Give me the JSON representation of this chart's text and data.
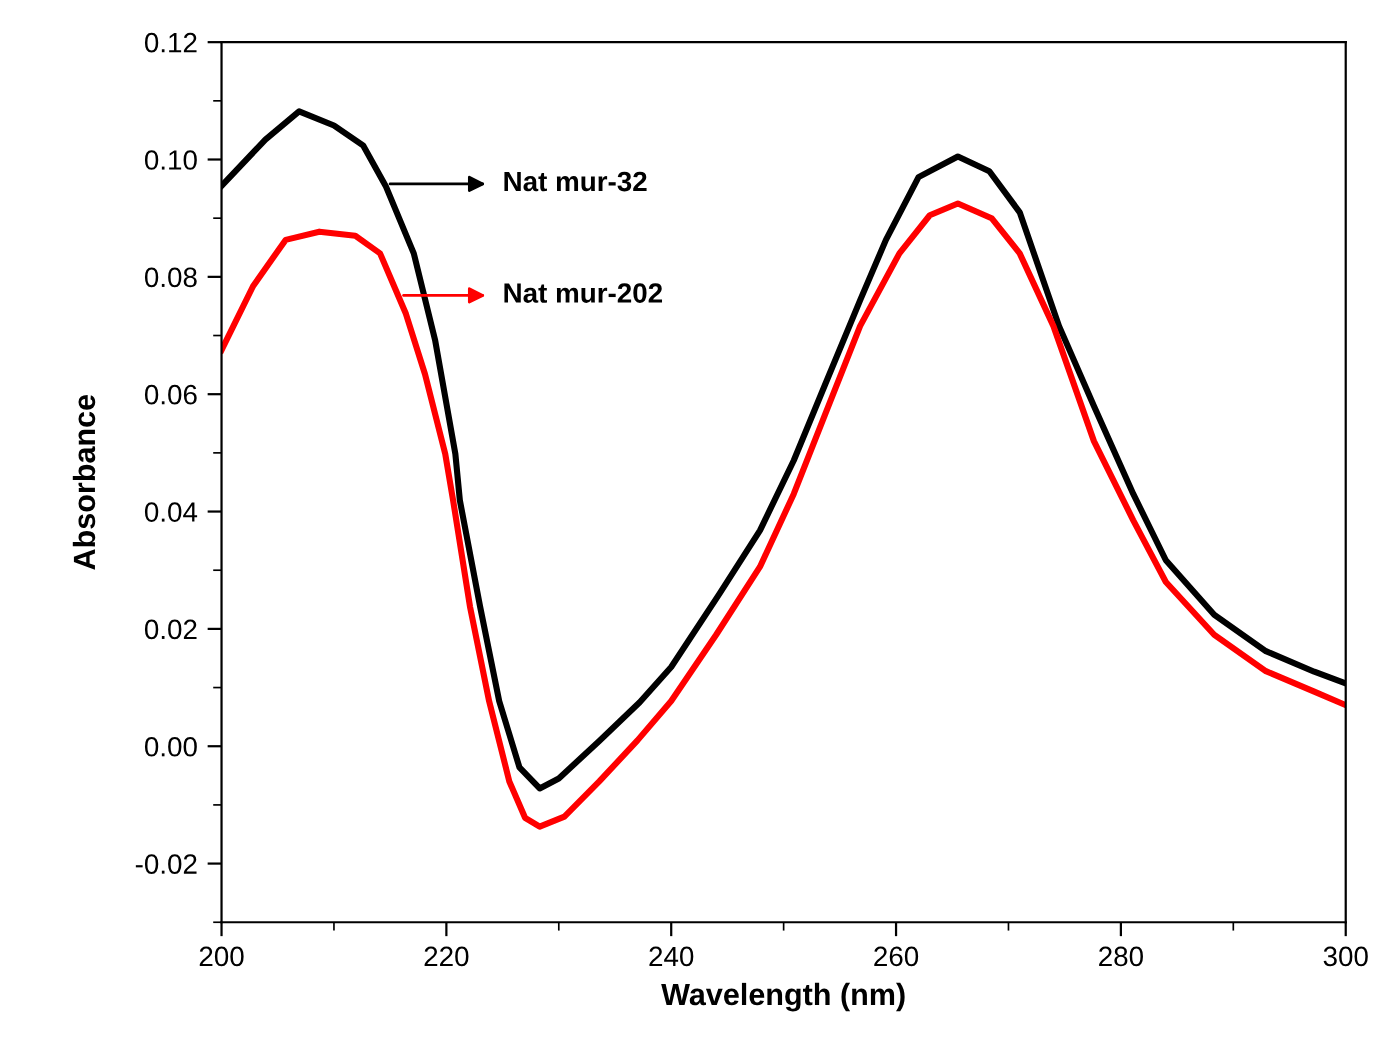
{
  "chart_data": {
    "type": "line",
    "xlabel": "Wavelength (nm)",
    "ylabel": "Absorbance",
    "xlim": [
      200,
      300
    ],
    "xticks": [
      200,
      220,
      240,
      260,
      280,
      300
    ],
    "ylim": [
      -0.03,
      0.12
    ],
    "yticks": [
      {
        "value": -0.02,
        "label": "-0.02"
      },
      {
        "value": 0,
        "label": "0.00"
      },
      {
        "value": 0.02,
        "label": "0.02"
      },
      {
        "value": 0.04,
        "label": "0.04"
      },
      {
        "value": 0.06,
        "label": "0.06"
      },
      {
        "value": 0.08,
        "label": "0.08"
      },
      {
        "value": 0.1,
        "label": "0.10"
      },
      {
        "value": 0.12,
        "label": "0.12"
      }
    ],
    "grid": false,
    "legend": "top left",
    "marker": "none",
    "line_style": "solid",
    "series": [
      {
        "name": "Nat mur-32",
        "color": "#000000",
        "x": [
          200,
          203.9,
          206.9,
          210,
          212.6,
          214.6,
          217.1,
          219,
          220.8,
          221.2,
          223,
          224.7,
          226.5,
          228.3,
          230,
          233.6,
          237.2,
          240,
          244.3,
          247.9,
          250.9,
          253.7,
          256.8,
          259.1,
          262,
          265.5,
          268.3,
          271,
          274.5,
          277.6,
          281.1,
          284,
          288.3,
          292.9,
          297.2,
          300
        ],
        "values": [
          0.0955,
          0.1034,
          0.1082,
          0.1058,
          0.1024,
          0.0955,
          0.084,
          0.0692,
          0.0498,
          0.0419,
          0.0238,
          0.0077,
          -0.0036,
          -0.0072,
          -0.0055,
          0.0009,
          0.0075,
          0.0135,
          0.026,
          0.0368,
          0.0487,
          0.0617,
          0.076,
          0.0863,
          0.097,
          0.1005,
          0.098,
          0.091,
          0.0716,
          0.058,
          0.043,
          0.0317,
          0.0224,
          0.0162,
          0.0127,
          0.0107
        ]
      },
      {
        "name": "Nat mur-202",
        "color": "#ff0000",
        "x": [
          200,
          202.8,
          205.7,
          208.7,
          211.9,
          214.1,
          216.4,
          218.1,
          219.9,
          220.6,
          222.1,
          223.8,
          225.6,
          227,
          228.3,
          230.5,
          233.6,
          237,
          240,
          244,
          247.9,
          250.9,
          253.7,
          256.8,
          260.3,
          263,
          265.5,
          268.5,
          271,
          274,
          277.6,
          281.1,
          284,
          288.3,
          292.9,
          297.2,
          300
        ],
        "values": [
          0.0675,
          0.0784,
          0.0863,
          0.0877,
          0.087,
          0.084,
          0.0737,
          0.0634,
          0.0498,
          0.0419,
          0.0238,
          0.0077,
          -0.006,
          -0.0122,
          -0.0137,
          -0.012,
          -0.006,
          0.001,
          0.0077,
          0.019,
          0.0306,
          0.043,
          0.0566,
          0.0716,
          0.084,
          0.0905,
          0.0925,
          0.09,
          0.084,
          0.0716,
          0.052,
          0.0385,
          0.028,
          0.019,
          0.0128,
          0.0093,
          0.007
        ]
      }
    ]
  }
}
